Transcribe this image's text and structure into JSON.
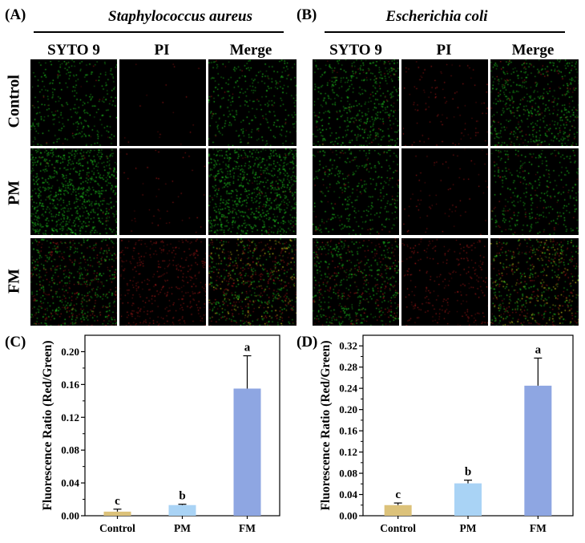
{
  "panels": {
    "A": {
      "label": "(A)",
      "organism": "Staphylococcus aureus",
      "columns": [
        "SYTO 9",
        "PI",
        "Merge"
      ],
      "rows": [
        "Control",
        "PM",
        "FM"
      ]
    },
    "B": {
      "label": "(B)",
      "organism": "Escherichia coli",
      "columns": [
        "SYTO 9",
        "PI",
        "Merge"
      ],
      "rows": [
        "Control",
        "PM",
        "FM"
      ]
    },
    "C": {
      "label": "(C)"
    },
    "D": {
      "label": "(D)"
    }
  },
  "colors": {
    "syto9": "#1fc21f",
    "pi": "#c41e1e",
    "merge_yellow": "#d8d81a",
    "bar_control": "#dcc27a",
    "bar_pm": "#a9d3f5",
    "bar_fm": "#8ea6e2"
  },
  "chart_data": [
    {
      "type": "bar",
      "panel": "C",
      "categories": [
        "Control",
        "PM",
        "FM"
      ],
      "values": [
        0.005,
        0.013,
        0.155
      ],
      "errors": [
        0.003,
        0.001,
        0.04
      ],
      "significance": [
        "c",
        "b",
        "a"
      ],
      "ylabel": "Fluorescence Ratio (Red/Green)",
      "xlabel": "",
      "ylim": [
        0,
        0.22
      ],
      "yticks": [
        "0.00",
        "0.04",
        "0.08",
        "0.12",
        "0.16",
        "0.20"
      ],
      "ytick_values": [
        0,
        0.04,
        0.08,
        0.12,
        0.16,
        0.2
      ]
    },
    {
      "type": "bar",
      "panel": "D",
      "categories": [
        "Control",
        "PM",
        "FM"
      ],
      "values": [
        0.02,
        0.061,
        0.245
      ],
      "errors": [
        0.004,
        0.006,
        0.052
      ],
      "significance": [
        "c",
        "b",
        "a"
      ],
      "ylabel": "Fluorescence Ratio (Red/Green)",
      "xlabel": "",
      "ylim": [
        0,
        0.34
      ],
      "yticks": [
        "0.00",
        "0.04",
        "0.08",
        "0.12",
        "0.16",
        "0.20",
        "0.24",
        "0.28",
        "0.32"
      ],
      "ytick_values": [
        0,
        0.04,
        0.08,
        0.12,
        0.16,
        0.2,
        0.24,
        0.28,
        0.32
      ]
    }
  ]
}
